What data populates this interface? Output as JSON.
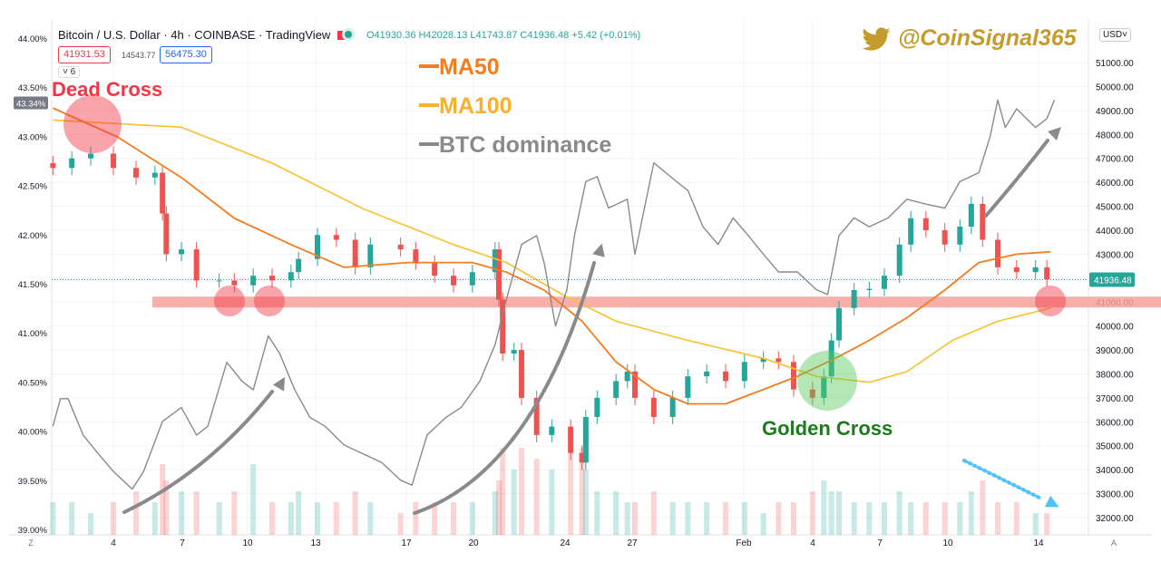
{
  "header": {
    "symbol": "Bitcoin / U.S. Dollar · 4h · COINBASE · TradingView",
    "ohlc": "O41930.36 H42028.13 L41743.87 C41936.48 +5.42 (+0.01%)",
    "sell_price": "41931.53",
    "spread": "14543.77",
    "buy_price": "56475.30",
    "indicator_count": "6",
    "currency": "USD"
  },
  "watermark": "@CoinSignal365",
  "annotations": {
    "dead_cross": "Dead Cross",
    "golden_cross": "Golden Cross",
    "legend_ma50": "MA50",
    "legend_ma100": "MA100",
    "legend_dominance": "BTC dominance"
  },
  "colors": {
    "up": "#26a69a",
    "down": "#ef5350",
    "ma50": "#f57c1f",
    "ma100": "#fbc02d",
    "dominance": "#8a8a8a",
    "dead_cross": "#f23645",
    "golden_cross": "#1e7a1e",
    "watermark": "#c59b2c",
    "support_band": "#f7a19b"
  },
  "chart_data": {
    "type": "candlestick",
    "title": "Bitcoin / U.S. Dollar · 4h · COINBASE",
    "x_ticks": [
      "4",
      "7",
      "10",
      "13",
      "17",
      "20",
      "24",
      "27",
      "Feb",
      "4",
      "7",
      "10",
      "14"
    ],
    "y_right": {
      "label": "",
      "ticks": [
        32000,
        33000,
        34000,
        35000,
        36000,
        37000,
        38000,
        39000,
        40000,
        41000,
        42000,
        43000,
        44000,
        45000,
        46000,
        47000,
        48000,
        49000,
        50000,
        51000
      ],
      "range": [
        31700,
        52000
      ]
    },
    "y_left": {
      "label": "",
      "ticks": [
        "39.00%",
        "39.50%",
        "40.00%",
        "40.50%",
        "41.00%",
        "41.50%",
        "42.00%",
        "42.50%",
        "43.00%",
        "43.50%",
        "44.00%"
      ],
      "range": [
        39.0,
        44.0
      ]
    },
    "last_price": "41936.48",
    "last_dominance": "43.34%",
    "support_level": 41000,
    "price_close": [
      [
        "01-01T08",
        46600
      ],
      [
        "01-02T04",
        47000
      ],
      [
        "01-03T00",
        47200
      ],
      [
        "01-04T00",
        46600
      ],
      [
        "01-05T00",
        46200
      ],
      [
        "01-05T20",
        46400
      ],
      [
        "01-06T04",
        44700
      ],
      [
        "01-06T08",
        43000
      ],
      [
        "01-07T00",
        43200
      ],
      [
        "01-07T16",
        41900
      ],
      [
        "01-08T16",
        41900
      ],
      [
        "01-09T08",
        41700
      ],
      [
        "01-10T04",
        42100
      ],
      [
        "01-11T00",
        41900
      ],
      [
        "01-11T20",
        42250
      ],
      [
        "01-12T04",
        42800
      ],
      [
        "01-13T00",
        43800
      ],
      [
        "01-13T20",
        43600
      ],
      [
        "01-14T16",
        42450
      ],
      [
        "01-15T08",
        43400
      ],
      [
        "01-16T16",
        43200
      ],
      [
        "01-17T08",
        42650
      ],
      [
        "01-18T04",
        42100
      ],
      [
        "01-19T00",
        41700
      ],
      [
        "01-19T20",
        42250
      ],
      [
        "01-20T20",
        43200
      ],
      [
        "01-21T00",
        41100
      ],
      [
        "01-21T04",
        38850
      ],
      [
        "01-21T16",
        39000
      ],
      [
        "01-22T00",
        37000
      ],
      [
        "01-22T16",
        35450
      ],
      [
        "01-23T08",
        35800
      ],
      [
        "01-24T04",
        34700
      ],
      [
        "01-24T16",
        34300
      ],
      [
        "01-24T20",
        36200
      ],
      [
        "01-25T08",
        37000
      ],
      [
        "01-26T04",
        37700
      ],
      [
        "01-26T16",
        38100
      ],
      [
        "01-27T00",
        37000
      ],
      [
        "01-27T20",
        36200
      ],
      [
        "01-28T16",
        37000
      ],
      [
        "01-29T08",
        37900
      ],
      [
        "01-30T04",
        38100
      ],
      [
        "01-31T00",
        37700
      ],
      [
        "01-31T20",
        38500
      ],
      [
        "02-01T16",
        38650
      ],
      [
        "02-02T08",
        38500
      ],
      [
        "02-03T00",
        37350
      ],
      [
        "02-03T20",
        37000
      ],
      [
        "02-04T08",
        37900
      ],
      [
        "02-04T16",
        39400
      ],
      [
        "02-05T00",
        40750
      ],
      [
        "02-05T16",
        41500
      ],
      [
        "02-06T08",
        41550
      ],
      [
        "02-07T00",
        42100
      ],
      [
        "02-07T16",
        43400
      ],
      [
        "02-08T04",
        44500
      ],
      [
        "02-08T20",
        44000
      ],
      [
        "02-09T16",
        43400
      ],
      [
        "02-10T08",
        44150
      ],
      [
        "02-10T20",
        45100
      ],
      [
        "02-11T08",
        43600
      ],
      [
        "02-12T00",
        42450
      ],
      [
        "02-12T20",
        42250
      ],
      [
        "02-13T16",
        42450
      ],
      [
        "02-14T04",
        41950
      ]
    ],
    "volume_relative": [
      3,
      3,
      2,
      3,
      4,
      3,
      6.5,
      5,
      4,
      4,
      3,
      4,
      6.5,
      3,
      3,
      4,
      3,
      3,
      4,
      3,
      2,
      3,
      3,
      3,
      3,
      4,
      5,
      8,
      6,
      8,
      7,
      6,
      9,
      8,
      6,
      4,
      4,
      3,
      3,
      4,
      3,
      3,
      3,
      3,
      3,
      2,
      3,
      3,
      4,
      5,
      4,
      4,
      3,
      3,
      3,
      4,
      3,
      3,
      3,
      3,
      4,
      5,
      3,
      3,
      2,
      2
    ],
    "ma50": [
      [
        "01-01T08",
        49100
      ],
      [
        "01-04T04",
        47900
      ],
      [
        "01-07T00",
        46200
      ],
      [
        "01-09T08",
        44500
      ],
      [
        "01-11T20",
        43400
      ],
      [
        "01-14T04",
        42450
      ],
      [
        "01-17T00",
        42650
      ],
      [
        "01-19T20",
        42650
      ],
      [
        "01-21T08",
        42250
      ],
      [
        "01-23T00",
        41500
      ],
      [
        "01-24T16",
        40200
      ],
      [
        "01-26T04",
        38500
      ],
      [
        "01-27T20",
        37350
      ],
      [
        "01-29T08",
        36750
      ],
      [
        "01-31T00",
        36750
      ],
      [
        "02-01T16",
        37350
      ],
      [
        "02-03T04",
        37900
      ],
      [
        "02-04T20",
        38650
      ],
      [
        "02-06T08",
        39400
      ],
      [
        "02-08T00",
        40350
      ],
      [
        "02-09T16",
        41500
      ],
      [
        "02-11T04",
        42650
      ],
      [
        "02-12T20",
        43000
      ],
      [
        "02-14T08",
        43100
      ]
    ],
    "ma100": [
      [
        "01-01T08",
        48600
      ],
      [
        "01-07T00",
        48300
      ],
      [
        "01-11T00",
        46800
      ],
      [
        "01-15T00",
        44900
      ],
      [
        "01-19T00",
        43400
      ],
      [
        "01-21T08",
        42650
      ],
      [
        "01-23T20",
        41300
      ],
      [
        "01-26T04",
        40200
      ],
      [
        "01-29T08",
        39400
      ],
      [
        "02-01T16",
        38650
      ],
      [
        "02-04T00",
        37900
      ],
      [
        "02-06T08",
        37650
      ],
      [
        "02-08T00",
        38100
      ],
      [
        "02-10T00",
        39400
      ],
      [
        "02-12T00",
        40200
      ],
      [
        "02-14T08",
        40750
      ]
    ],
    "btc_dominance_pct": [
      [
        "01-01T08",
        40.05
      ],
      [
        "01-01T16",
        40.33
      ],
      [
        "01-02T00",
        40.33
      ],
      [
        "01-02T16",
        39.96
      ],
      [
        "01-03T08",
        39.77
      ],
      [
        "01-04T00",
        39.59
      ],
      [
        "01-04T20",
        39.41
      ],
      [
        "01-05T08",
        39.59
      ],
      [
        "01-06T04",
        40.1
      ],
      [
        "01-07T00",
        40.24
      ],
      [
        "01-07T16",
        39.96
      ],
      [
        "01-08T04",
        40.05
      ],
      [
        "01-09T00",
        40.7
      ],
      [
        "01-09T16",
        40.51
      ],
      [
        "01-10T04",
        40.42
      ],
      [
        "01-10T20",
        40.97
      ],
      [
        "01-11T08",
        40.79
      ],
      [
        "01-12T00",
        40.42
      ],
      [
        "01-12T16",
        40.14
      ],
      [
        "01-13T08",
        40.05
      ],
      [
        "01-14T04",
        39.86
      ],
      [
        "01-15T00",
        39.77
      ],
      [
        "01-15T20",
        39.68
      ],
      [
        "01-16T16",
        39.5
      ],
      [
        "01-17T04",
        39.45
      ],
      [
        "01-17T20",
        39.96
      ],
      [
        "01-18T16",
        40.14
      ],
      [
        "01-19T08",
        40.24
      ],
      [
        "01-20T04",
        40.51
      ],
      [
        "01-20T20",
        40.88
      ],
      [
        "01-21T08",
        41.34
      ],
      [
        "01-22T00",
        41.9
      ],
      [
        "01-22T16",
        41.99
      ],
      [
        "01-23T00",
        41.71
      ],
      [
        "01-23T12",
        41.07
      ],
      [
        "01-24T00",
        41.44
      ],
      [
        "01-24T08",
        41.99
      ],
      [
        "01-24T20",
        42.54
      ],
      [
        "01-25T08",
        42.59
      ],
      [
        "01-25T20",
        42.27
      ],
      [
        "01-26T16",
        42.36
      ],
      [
        "01-27T00",
        41.8
      ],
      [
        "01-27T20",
        42.73
      ],
      [
        "01-28T20",
        42.54
      ],
      [
        "01-29T08",
        42.45
      ],
      [
        "01-30T00",
        42.08
      ],
      [
        "01-30T16",
        41.9
      ],
      [
        "01-31T08",
        42.17
      ],
      [
        "02-01T00",
        41.99
      ],
      [
        "02-01T16",
        41.8
      ],
      [
        "02-02T08",
        41.62
      ],
      [
        "02-03T04",
        41.62
      ],
      [
        "02-04T00",
        41.44
      ],
      [
        "02-04T12",
        41.39
      ],
      [
        "02-05T00",
        41.99
      ],
      [
        "02-05T16",
        42.17
      ],
      [
        "02-06T08",
        42.08
      ],
      [
        "02-07T04",
        42.17
      ],
      [
        "02-08T00",
        42.36
      ],
      [
        "02-08T20",
        42.31
      ],
      [
        "02-09T16",
        42.27
      ],
      [
        "02-10T08",
        42.54
      ],
      [
        "02-11T04",
        42.63
      ],
      [
        "02-11T16",
        43.0
      ],
      [
        "02-12T00",
        43.37
      ],
      [
        "02-12T08",
        43.09
      ],
      [
        "02-12T20",
        43.28
      ],
      [
        "02-13T16",
        43.09
      ],
      [
        "02-14T04",
        43.18
      ],
      [
        "02-14T12",
        43.37
      ]
    ]
  }
}
